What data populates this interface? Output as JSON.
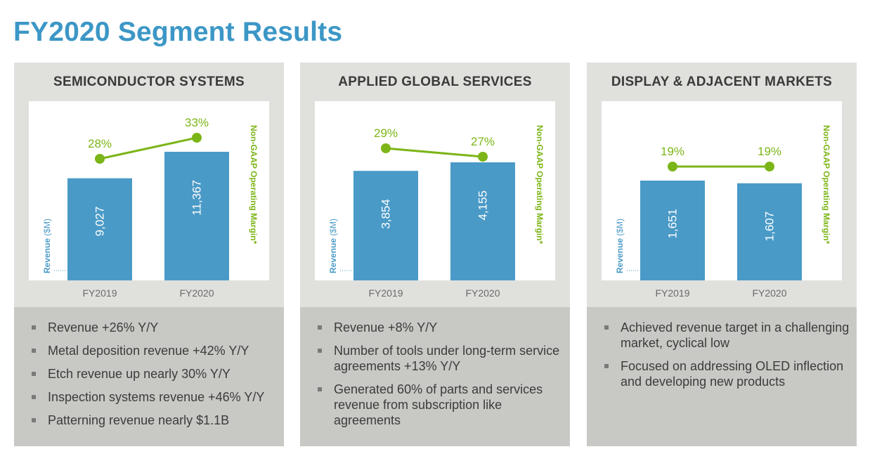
{
  "page": {
    "title": "FY2020 Segment Results"
  },
  "colors": {
    "title": "#3c97c6",
    "bar": "#4a9ac7",
    "margin_line": "#7cb518",
    "panel_head": "#e0e0dd",
    "panel_body": "#c8c8c5"
  },
  "axis_labels": {
    "left_bold": "Revenue",
    "left_unit": "($M)",
    "right": "Non-GAAP Operating Margin",
    "right_suffix": "*"
  },
  "panels": [
    {
      "title": "SEMICONDUCTOR SYSTEMS",
      "bullets": [
        "Revenue +26% Y/Y",
        "Metal deposition revenue +42% Y/Y",
        "Etch revenue up nearly 30% Y/Y",
        "Inspection systems revenue +46% Y/Y",
        "Patterning revenue nearly $1.1B"
      ]
    },
    {
      "title": "APPLIED GLOBAL SERVICES",
      "bullets": [
        "Revenue +8% Y/Y",
        "Number of tools under long-term service agreements +13% Y/Y",
        "Generated 60% of parts and services revenue from subscription like agreements"
      ]
    },
    {
      "title": "DISPLAY & ADJACENT MARKETS",
      "bullets": [
        "Achieved revenue target in a challenging market, cyclical low",
        "Focused on addressing OLED inflection and developing new products"
      ]
    }
  ],
  "chart_data": [
    {
      "type": "bar",
      "categories": [
        "FY2019",
        "FY2020"
      ],
      "ylabel": "Revenue ($M)",
      "y2label": "Non-GAAP Operating Margin*",
      "series": [
        {
          "name": "Revenue ($M)",
          "type": "bar",
          "values": [
            9027,
            11367
          ],
          "labels": [
            "9,027",
            "11,367"
          ]
        },
        {
          "name": "Non-GAAP Operating Margin",
          "type": "line",
          "values": [
            28,
            33
          ],
          "labels": [
            "28%",
            "33%"
          ]
        }
      ]
    },
    {
      "type": "bar",
      "categories": [
        "FY2019",
        "FY2020"
      ],
      "ylabel": "Revenue ($M)",
      "y2label": "Non-GAAP Operating Margin*",
      "series": [
        {
          "name": "Revenue ($M)",
          "type": "bar",
          "values": [
            3854,
            4155
          ],
          "labels": [
            "3,854",
            "4,155"
          ]
        },
        {
          "name": "Non-GAAP Operating Margin",
          "type": "line",
          "values": [
            29,
            27
          ],
          "labels": [
            "29%",
            "27%"
          ]
        }
      ]
    },
    {
      "type": "bar",
      "categories": [
        "FY2019",
        "FY2020"
      ],
      "ylabel": "Revenue ($M)",
      "y2label": "Non-GAAP Operating Margin*",
      "series": [
        {
          "name": "Revenue ($M)",
          "type": "bar",
          "values": [
            1651,
            1607
          ],
          "labels": [
            "1,651",
            "1,607"
          ]
        },
        {
          "name": "Non-GAAP Operating Margin",
          "type": "line",
          "values": [
            19,
            19
          ],
          "labels": [
            "19%",
            "19%"
          ]
        }
      ]
    }
  ]
}
